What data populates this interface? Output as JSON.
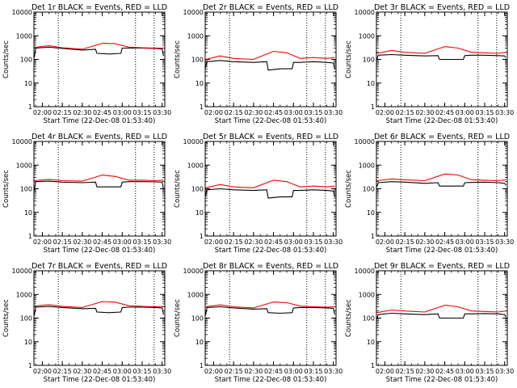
{
  "figure": {
    "background": "#ffffff",
    "frame_color": "#000000"
  },
  "chart_data": [
    {
      "type": "line",
      "detector": "1r",
      "title": "Det 1r BLACK = Events, RED = LLD",
      "xlabel": "Start Time (22-Dec-08 01:53:40)",
      "ylabel": "Counts/sec",
      "x_tick_labels": [
        "02:00",
        "02:15",
        "02:30",
        "02:45",
        "03:00",
        "03:15",
        "03:30"
      ],
      "y_tick_labels": [
        "1",
        "10",
        "100",
        "1000",
        "10000"
      ],
      "y_scale": "log",
      "ylim": [
        1,
        10000
      ],
      "xlim": [
        "01:53:40",
        "03:32:00"
      ],
      "grid": false,
      "legend": "none (colors explained in title)",
      "vlines": [
        "02:12",
        "03:10",
        "03:24"
      ],
      "series": [
        {
          "color": "#000000",
          "values_x": [
            "01:54",
            "01:55",
            "02:05",
            "02:15",
            "02:30",
            "02:40",
            "02:41",
            "02:50",
            "02:59",
            "03:00",
            "03:05",
            "03:15",
            "03:25",
            "03:30",
            "03:31"
          ],
          "values_y": [
            120,
            300,
            330,
            290,
            250,
            270,
            180,
            170,
            180,
            300,
            300,
            300,
            290,
            280,
            140
          ]
        },
        {
          "color": "#ff0000",
          "values_x": [
            "01:54",
            "02:05",
            "02:15",
            "02:30",
            "02:45",
            "02:55",
            "03:05",
            "03:15",
            "03:25",
            "03:31"
          ],
          "values_y": [
            320,
            380,
            310,
            270,
            480,
            460,
            330,
            310,
            300,
            300
          ]
        }
      ]
    },
    {
      "type": "line",
      "detector": "2r",
      "title": "Det 2r BLACK = Events, RED = LLD",
      "xlabel": "Start Time (22-Dec-08 01:53:40)",
      "ylabel": "Counts/sec",
      "x_tick_labels": [
        "02:00",
        "02:15",
        "02:30",
        "02:45",
        "03:00",
        "03:15",
        "03:30"
      ],
      "y_tick_labels": [
        "1",
        "10",
        "100",
        "1000",
        "10000"
      ],
      "y_scale": "log",
      "ylim": [
        1,
        10000
      ],
      "xlim": [
        "01:53:40",
        "03:32:00"
      ],
      "grid": false,
      "legend": "none (colors explained in title)",
      "vlines": [
        "02:12",
        "03:10",
        "03:24"
      ],
      "series": [
        {
          "color": "#000000",
          "values_x": [
            "01:54",
            "01:55",
            "02:05",
            "02:15",
            "02:30",
            "02:40",
            "02:41",
            "02:50",
            "02:59",
            "03:00",
            "03:05",
            "03:15",
            "03:25",
            "03:30",
            "03:31"
          ],
          "values_y": [
            45,
            80,
            90,
            80,
            75,
            80,
            35,
            40,
            40,
            75,
            75,
            80,
            75,
            70,
            40
          ]
        },
        {
          "color": "#ff0000",
          "values_x": [
            "01:54",
            "02:05",
            "02:15",
            "02:30",
            "02:45",
            "02:55",
            "03:05",
            "03:15",
            "03:25",
            "03:31"
          ],
          "values_y": [
            100,
            140,
            110,
            100,
            220,
            190,
            110,
            120,
            110,
            120
          ]
        }
      ]
    },
    {
      "type": "line",
      "detector": "3r",
      "title": "Det 3r BLACK = Events, RED = LLD",
      "xlabel": "Start Time (22-Dec-08 01:53:40)",
      "ylabel": "Counts/sec",
      "x_tick_labels": [
        "02:00",
        "02:15",
        "02:30",
        "02:45",
        "03:00",
        "03:15",
        "03:30"
      ],
      "y_tick_labels": [
        "1",
        "10",
        "100",
        "1000",
        "10000"
      ],
      "y_scale": "log",
      "ylim": [
        1,
        10000
      ],
      "xlim": [
        "01:53:40",
        "03:32:00"
      ],
      "grid": false,
      "legend": "none (colors explained in title)",
      "vlines": [
        "02:12",
        "03:10",
        "03:24"
      ],
      "series": [
        {
          "color": "#000000",
          "values_x": [
            "01:54",
            "01:55",
            "02:05",
            "02:15",
            "02:30",
            "02:40",
            "02:41",
            "02:50",
            "02:59",
            "03:00",
            "03:05",
            "03:15",
            "03:25",
            "03:30",
            "03:31"
          ],
          "values_y": [
            100,
            150,
            160,
            150,
            140,
            145,
            100,
            100,
            100,
            145,
            150,
            150,
            145,
            140,
            120
          ]
        },
        {
          "color": "#ff0000",
          "values_x": [
            "01:54",
            "02:05",
            "02:15",
            "02:30",
            "02:45",
            "02:55",
            "03:05",
            "03:15",
            "03:25",
            "03:31"
          ],
          "values_y": [
            180,
            240,
            200,
            180,
            350,
            300,
            200,
            190,
            180,
            200
          ]
        }
      ]
    },
    {
      "type": "line",
      "detector": "4r",
      "title": "Det 4r BLACK = Events, RED = LLD",
      "xlabel": "Start Time (22-Dec-08 01:53:40)",
      "ylabel": "Counts/sec",
      "x_tick_labels": [
        "02:00",
        "02:15",
        "02:30",
        "02:45",
        "03:00",
        "03:15",
        "03:30"
      ],
      "y_tick_labels": [
        "1",
        "10",
        "100",
        "1000",
        "10000"
      ],
      "y_scale": "log",
      "ylim": [
        1,
        10000
      ],
      "xlim": [
        "01:53:40",
        "03:32:00"
      ],
      "grid": false,
      "legend": "none (colors explained in title)",
      "vlines": [
        "02:12",
        "03:10",
        "03:24"
      ],
      "series": [
        {
          "color": "#000000",
          "values_x": [
            "01:54",
            "01:55",
            "02:05",
            "02:15",
            "02:30",
            "02:40",
            "02:41",
            "02:50",
            "02:59",
            "03:00",
            "03:05",
            "03:15",
            "03:25",
            "03:30",
            "03:31"
          ],
          "values_y": [
            80,
            200,
            210,
            190,
            180,
            190,
            120,
            120,
            120,
            190,
            200,
            200,
            195,
            190,
            100
          ]
        },
        {
          "color": "#ff0000",
          "values_x": [
            "01:54",
            "02:05",
            "02:15",
            "02:30",
            "02:45",
            "02:55",
            "03:05",
            "03:15",
            "03:25",
            "03:31"
          ],
          "values_y": [
            220,
            250,
            220,
            210,
            380,
            330,
            230,
            230,
            220,
            230
          ]
        }
      ]
    },
    {
      "type": "line",
      "detector": "5r",
      "title": "Det 5r BLACK = Events, RED = LLD",
      "xlabel": "Start Time (22-Dec-08 01:53:40)",
      "ylabel": "Counts/sec",
      "x_tick_labels": [
        "02:00",
        "02:15",
        "02:30",
        "02:45",
        "03:00",
        "03:15",
        "03:30"
      ],
      "y_tick_labels": [
        "1",
        "10",
        "100",
        "1000",
        "10000"
      ],
      "y_scale": "log",
      "ylim": [
        1,
        10000
      ],
      "xlim": [
        "01:53:40",
        "03:32:00"
      ],
      "grid": false,
      "legend": "none (colors explained in title)",
      "vlines": [
        "02:12",
        "03:10",
        "03:24"
      ],
      "series": [
        {
          "color": "#000000",
          "values_x": [
            "01:54",
            "01:55",
            "02:05",
            "02:15",
            "02:30",
            "02:40",
            "02:41",
            "02:50",
            "02:59",
            "03:00",
            "03:05",
            "03:15",
            "03:25",
            "03:30",
            "03:31"
          ],
          "values_y": [
            50,
            90,
            100,
            90,
            85,
            90,
            40,
            45,
            45,
            85,
            85,
            90,
            85,
            80,
            45
          ]
        },
        {
          "color": "#ff0000",
          "values_x": [
            "01:54",
            "02:05",
            "02:15",
            "02:30",
            "02:45",
            "02:55",
            "03:05",
            "03:15",
            "03:25",
            "03:31"
          ],
          "values_y": [
            110,
            150,
            120,
            110,
            230,
            200,
            120,
            130,
            120,
            130
          ]
        }
      ]
    },
    {
      "type": "line",
      "detector": "6r",
      "title": "Det 6r BLACK = Events, RED = LLD",
      "xlabel": "Start Time (22-Dec-08 01:53:40)",
      "ylabel": "Counts/sec",
      "x_tick_labels": [
        "02:00",
        "02:15",
        "02:30",
        "02:45",
        "03:00",
        "03:15",
        "03:30"
      ],
      "y_tick_labels": [
        "1",
        "10",
        "100",
        "1000",
        "10000"
      ],
      "y_scale": "log",
      "ylim": [
        1,
        10000
      ],
      "xlim": [
        "01:53:40",
        "03:32:00"
      ],
      "grid": false,
      "legend": "none (colors explained in title)",
      "vlines": [
        "02:12",
        "03:10",
        "03:24"
      ],
      "series": [
        {
          "color": "#000000",
          "values_x": [
            "01:54",
            "01:55",
            "02:05",
            "02:15",
            "02:30",
            "02:40",
            "02:41",
            "02:50",
            "02:59",
            "03:00",
            "03:05",
            "03:15",
            "03:25",
            "03:30",
            "03:31"
          ],
          "values_y": [
            120,
            180,
            200,
            190,
            170,
            180,
            130,
            130,
            130,
            180,
            185,
            190,
            180,
            170,
            140
          ]
        },
        {
          "color": "#ff0000",
          "values_x": [
            "01:54",
            "02:05",
            "02:15",
            "02:30",
            "02:45",
            "02:55",
            "03:05",
            "03:15",
            "03:25",
            "03:31"
          ],
          "values_y": [
            220,
            260,
            240,
            220,
            420,
            380,
            240,
            230,
            220,
            240
          ]
        }
      ]
    },
    {
      "type": "line",
      "detector": "7r",
      "title": "Det 7r BLACK = Events, RED = LLD",
      "xlabel": "Start Time (22-Dec-08 01:53:40)",
      "ylabel": "Counts/sec",
      "x_tick_labels": [
        "02:00",
        "02:15",
        "02:30",
        "02:45",
        "03:00",
        "03:15",
        "03:30"
      ],
      "y_tick_labels": [
        "1",
        "10",
        "100",
        "1000",
        "10000"
      ],
      "y_scale": "log",
      "ylim": [
        1,
        10000
      ],
      "xlim": [
        "01:53:40",
        "03:32:00"
      ],
      "grid": false,
      "legend": "none (colors explained in title)",
      "vlines": [
        "02:12",
        "03:10",
        "03:24"
      ],
      "series": [
        {
          "color": "#000000",
          "values_x": [
            "01:54",
            "01:55",
            "02:05",
            "02:15",
            "02:30",
            "02:40",
            "02:41",
            "02:50",
            "02:59",
            "03:00",
            "03:05",
            "03:15",
            "03:25",
            "03:30",
            "03:31"
          ],
          "values_y": [
            130,
            290,
            310,
            280,
            250,
            260,
            180,
            170,
            180,
            280,
            290,
            290,
            280,
            270,
            140
          ]
        },
        {
          "color": "#ff0000",
          "values_x": [
            "01:54",
            "02:05",
            "02:15",
            "02:30",
            "02:45",
            "02:55",
            "03:05",
            "03:15",
            "03:25",
            "03:31"
          ],
          "values_y": [
            320,
            370,
            310,
            280,
            500,
            470,
            330,
            310,
            300,
            310
          ]
        }
      ]
    },
    {
      "type": "line",
      "detector": "8r",
      "title": "Det 8r BLACK = Events, RED = LLD",
      "xlabel": "Start Time (22-Dec-08 01:53:40)",
      "ylabel": "Counts/sec",
      "x_tick_labels": [
        "02:00",
        "02:15",
        "02:30",
        "02:45",
        "03:00",
        "03:15",
        "03:30"
      ],
      "y_tick_labels": [
        "1",
        "10",
        "100",
        "1000",
        "10000"
      ],
      "y_scale": "log",
      "ylim": [
        1,
        10000
      ],
      "xlim": [
        "01:53:40",
        "03:32:00"
      ],
      "grid": false,
      "legend": "none (colors explained in title)",
      "vlines": [
        "02:12",
        "03:10",
        "03:24"
      ],
      "series": [
        {
          "color": "#000000",
          "values_x": [
            "01:54",
            "01:55",
            "02:05",
            "02:15",
            "02:30",
            "02:40",
            "02:41",
            "02:50",
            "02:59",
            "03:00",
            "03:05",
            "03:15",
            "03:25",
            "03:30",
            "03:31"
          ],
          "values_y": [
            130,
            280,
            300,
            270,
            240,
            250,
            170,
            160,
            170,
            270,
            280,
            280,
            270,
            260,
            140
          ]
        },
        {
          "color": "#ff0000",
          "values_x": [
            "01:54",
            "02:05",
            "02:15",
            "02:30",
            "02:45",
            "02:55",
            "03:05",
            "03:15",
            "03:25",
            "03:31"
          ],
          "values_y": [
            300,
            360,
            300,
            270,
            480,
            450,
            320,
            300,
            290,
            300
          ]
        }
      ]
    },
    {
      "type": "line",
      "detector": "9r",
      "title": "Det 9r BLACK = Events, RED = LLD",
      "xlabel": "Start Time (22-Dec-08 01:53:40)",
      "ylabel": "Counts/sec",
      "x_tick_labels": [
        "02:00",
        "02:15",
        "02:30",
        "02:45",
        "03:00",
        "03:15",
        "03:30"
      ],
      "y_tick_labels": [
        "1",
        "10",
        "100",
        "1000",
        "10000"
      ],
      "y_scale": "log",
      "ylim": [
        1,
        10000
      ],
      "xlim": [
        "01:53:40",
        "03:32:00"
      ],
      "grid": false,
      "legend": "none (colors explained in title)",
      "vlines": [
        "02:12",
        "03:10",
        "03:24"
      ],
      "series": [
        {
          "color": "#000000",
          "values_x": [
            "01:54",
            "01:55",
            "02:05",
            "02:15",
            "02:30",
            "02:40",
            "02:41",
            "02:50",
            "02:59",
            "03:00",
            "03:05",
            "03:15",
            "03:25",
            "03:30",
            "03:31"
          ],
          "values_y": [
            90,
            140,
            160,
            150,
            140,
            150,
            100,
            100,
            100,
            150,
            150,
            155,
            150,
            140,
            110
          ]
        },
        {
          "color": "#ff0000",
          "values_x": [
            "01:54",
            "02:05",
            "02:15",
            "02:30",
            "02:45",
            "02:55",
            "03:05",
            "03:15",
            "03:25",
            "03:31"
          ],
          "values_y": [
            170,
            220,
            200,
            180,
            350,
            300,
            200,
            190,
            180,
            200
          ]
        }
      ]
    }
  ]
}
